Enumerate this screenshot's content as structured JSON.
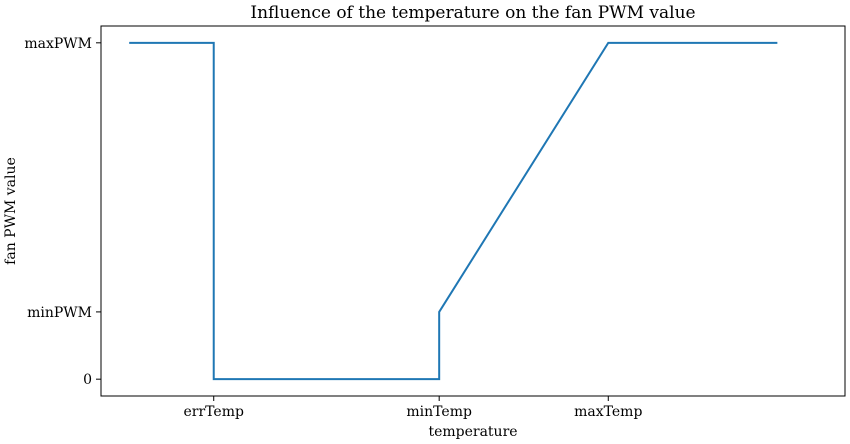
{
  "chart_data": {
    "type": "line",
    "title": "Influence of the temperature on the fan PWM value",
    "xlabel": "temperature",
    "ylabel": "fan PWM value",
    "x_ticks": [
      {
        "value": 2,
        "label": "errTemp"
      },
      {
        "value": 6,
        "label": "minTemp"
      },
      {
        "value": 9,
        "label": "maxTemp"
      }
    ],
    "y_ticks": [
      {
        "value": 0,
        "label": "0"
      },
      {
        "value": 1,
        "label": "minPWM"
      },
      {
        "value": 5,
        "label": "maxPWM"
      }
    ],
    "xlim": [
      0,
      13.2
    ],
    "ylim": [
      -0.25,
      5.25
    ],
    "grid": false,
    "series": [
      {
        "color": "#1f77b4",
        "points": [
          [
            0.5,
            5
          ],
          [
            2,
            5
          ],
          [
            2,
            0
          ],
          [
            6,
            0
          ],
          [
            6,
            1
          ],
          [
            9,
            5
          ],
          [
            12,
            5
          ]
        ]
      }
    ]
  }
}
